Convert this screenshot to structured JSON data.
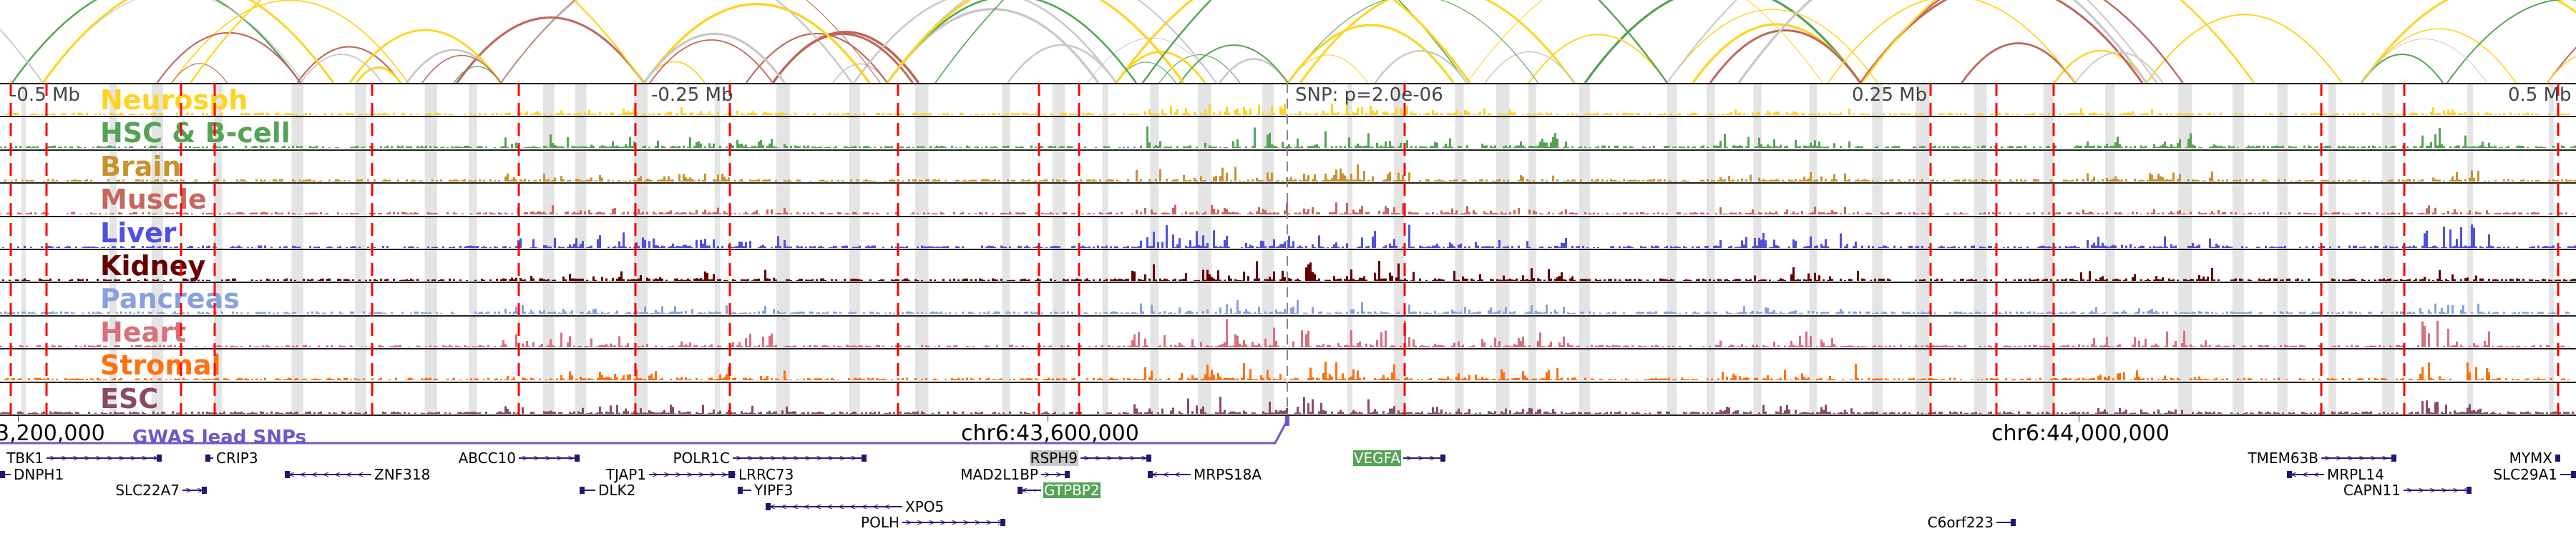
{
  "tracks": [
    {
      "label": "Neurosph",
      "color": "#FFD320"
    },
    {
      "label": "HSC & B-cell",
      "color": "#55A355"
    },
    {
      "label": "Brain",
      "color": "#C8922C"
    },
    {
      "label": "Muscle",
      "color": "#C8665E"
    },
    {
      "label": "Liver",
      "color": "#5050E0"
    },
    {
      "label": "Kidney",
      "color": "#660000"
    },
    {
      "label": "Pancreas",
      "color": "#88A0E0"
    },
    {
      "label": "Heart",
      "color": "#D8707C"
    },
    {
      "label": "Stromal",
      "color": "#FF7010"
    },
    {
      "label": "ESC",
      "color": "#8B4A62"
    }
  ],
  "distance_labels": [
    "-0.5 Mb",
    "-0.25 Mb",
    "0.25 Mb",
    "0.5 Mb"
  ],
  "snp_label": "SNP: p=2.0e-06",
  "coordinates": [
    "3,200,000",
    "chr6:43,600,000",
    "chr6:44,000,000"
  ],
  "gwas": {
    "label": "GWAS lead SNPs",
    "color": "#6A5ACD"
  },
  "genes": [
    {
      "name": "TBK1",
      "strand": "+"
    },
    {
      "name": "DNPH1",
      "strand": "-"
    },
    {
      "name": "CRIP3",
      "strand": "-"
    },
    {
      "name": "SLC22A7",
      "strand": "+"
    },
    {
      "name": "ZNF318",
      "strand": "-"
    },
    {
      "name": "ABCC10",
      "strand": "+"
    },
    {
      "name": "TJAP1",
      "strand": "+"
    },
    {
      "name": "DLK2",
      "strand": "-"
    },
    {
      "name": "POLR1C",
      "strand": "+"
    },
    {
      "name": "LRRC73",
      "strand": "-"
    },
    {
      "name": "YIPF3",
      "strand": "-"
    },
    {
      "name": "XPO5",
      "strand": "-"
    },
    {
      "name": "POLH",
      "strand": "+"
    },
    {
      "name": "RSPH9",
      "strand": "+",
      "highlight": "#C8C8C8"
    },
    {
      "name": "MAD2L1BP",
      "strand": "+"
    },
    {
      "name": "GTPBP2",
      "strand": "-",
      "highlight": "#55A355"
    },
    {
      "name": "MRPS18A",
      "strand": "-"
    },
    {
      "name": "VEGFA",
      "strand": "+",
      "highlight": "#55A355"
    },
    {
      "name": "C6orf223",
      "strand": "+"
    },
    {
      "name": "TMEM63B",
      "strand": "+"
    },
    {
      "name": "MRPL14",
      "strand": "-"
    },
    {
      "name": "CAPN11",
      "strand": "+"
    },
    {
      "name": "MYMX",
      "strand": "-"
    },
    {
      "name": "SLC29A1",
      "strand": "+"
    }
  ],
  "arc_colors": [
    "#FFD320",
    "#55A355",
    "#C0655A",
    "#C8C8C8"
  ]
}
